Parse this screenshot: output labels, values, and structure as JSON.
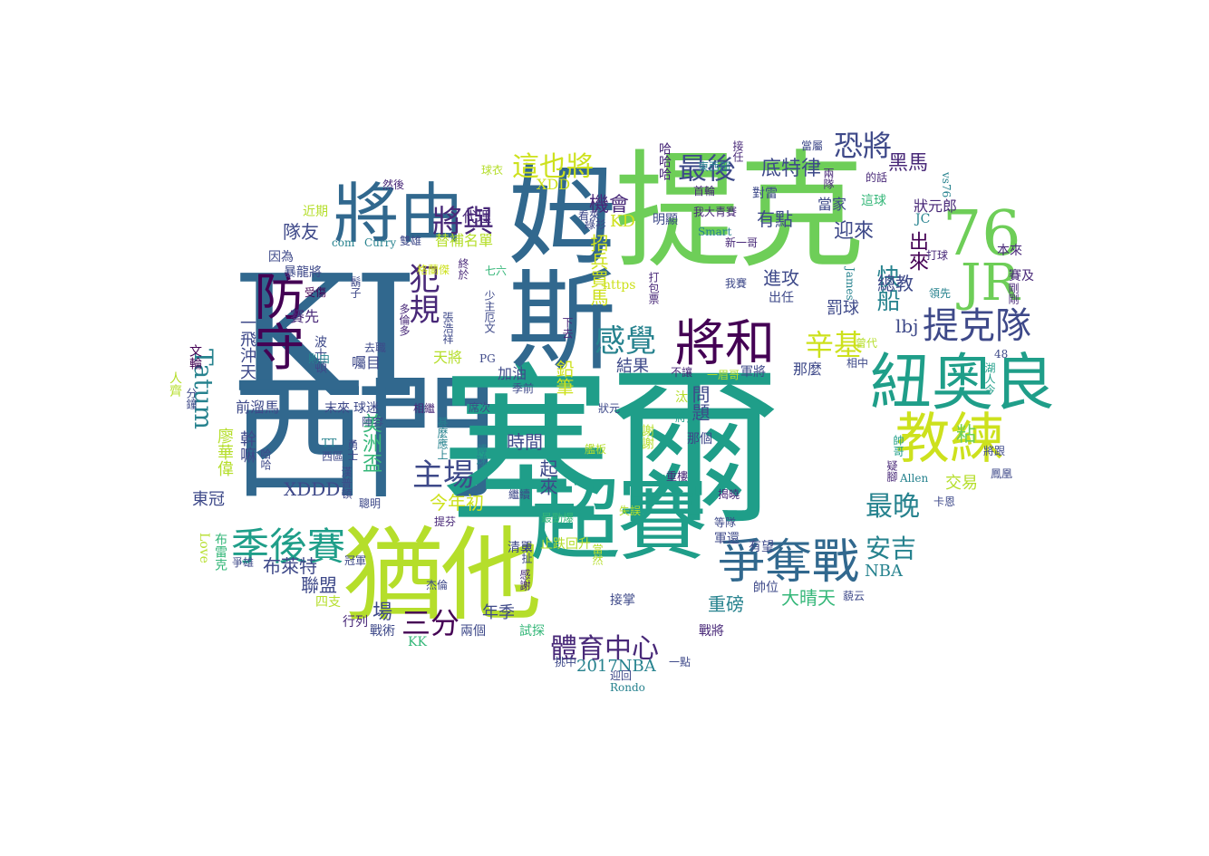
{
  "palette": {
    "dark_purple": "#440154",
    "purple": "#482878",
    "indigo": "#3e4989",
    "blue": "#31688e",
    "teal_blue": "#26828e",
    "teal": "#1f9e89",
    "green_teal": "#35b779",
    "green": "#6ece58",
    "lime": "#b5de2b",
    "yellow": "#cde11d"
  },
  "words": [
    {
      "text": "KI"
    },
    {
      "text": "西門"
    },
    {
      "text": "塞爾"
    },
    {
      "text": "提克"
    },
    {
      "text": "姆斯"
    },
    {
      "text": "猶他"
    },
    {
      "text": "超賽"
    },
    {
      "text": "紐奧良"
    },
    {
      "text": "將由"
    },
    {
      "text": "教練"
    },
    {
      "text": "76"
    },
    {
      "text": "JR"
    },
    {
      "text": "爭奪戰"
    },
    {
      "text": "將和"
    },
    {
      "text": "防守"
    },
    {
      "text": "季後賽"
    },
    {
      "text": "提克隊"
    },
    {
      "text": "感覺"
    },
    {
      "text": "將與"
    },
    {
      "text": "犯規"
    },
    {
      "text": "主場"
    },
    {
      "text": "最後"
    },
    {
      "text": "恐將"
    },
    {
      "text": "這也將"
    },
    {
      "text": "體育中心"
    },
    {
      "text": "三分"
    },
    {
      "text": "辛基"
    },
    {
      "text": "最晚"
    },
    {
      "text": "安吉"
    },
    {
      "text": "Tatum"
    },
    {
      "text": "快船"
    },
    {
      "text": "出來"
    },
    {
      "text": "底特律"
    },
    {
      "text": "黑馬"
    },
    {
      "text": "機會"
    },
    {
      "text": "迎來"
    },
    {
      "text": "有點"
    },
    {
      "text": "進攻"
    },
    {
      "text": "總教"
    },
    {
      "text": "罰球"
    },
    {
      "text": "lbj"
    },
    {
      "text": "隊友"
    },
    {
      "text": "代理"
    },
    {
      "text": "XDD"
    },
    {
      "text": "KD"
    },
    {
      "text": "替補名單"
    },
    {
      "text": "招兵買馬"
    },
    {
      "text": "鉛筆"
    },
    {
      "text": "結果"
    },
    {
      "text": "時間"
    },
    {
      "text": "問題"
    },
    {
      "text": "起來"
    },
    {
      "text": "今年初"
    },
    {
      "text": "XDDD"
    },
    {
      "text": "美洲盃"
    },
    {
      "text": "布萊特"
    },
    {
      "text": "聯盟"
    },
    {
      "text": "年季"
    },
    {
      "text": "場"
    },
    {
      "text": "重磅"
    },
    {
      "text": "大晴天"
    },
    {
      "text": "NBA"
    },
    {
      "text": "交易"
    },
    {
      "text": "粘"
    },
    {
      "text": "東冠"
    },
    {
      "text": "2017NBA"
    },
    {
      "text": "加油"
    },
    {
      "text": "天將"
    },
    {
      "text": "囑目"
    },
    {
      "text": "一飛沖天"
    },
    {
      "text": "幹嘛"
    },
    {
      "text": "廖華偉"
    },
    {
      "text": "前溜馬"
    },
    {
      "text": "清單"
    },
    {
      "text": "止跌回升"
    },
    {
      "text": "軍還"
    },
    {
      "text": "有望"
    },
    {
      "text": "帥位"
    },
    {
      "text": "戰將"
    },
    {
      "text": "挑中"
    },
    {
      "text": "迎回"
    },
    {
      "text": "一點"
    },
    {
      "text": "接掌"
    },
    {
      "text": "試探"
    },
    {
      "text": "兩個"
    },
    {
      "text": "戰術"
    },
    {
      "text": "KK"
    },
    {
      "text": "行列"
    },
    {
      "text": "四支"
    },
    {
      "text": "爭雄"
    },
    {
      "text": "Love"
    },
    {
      "text": "布雷克"
    },
    {
      "text": "近期"
    },
    {
      "text": "因為"
    },
    {
      "text": "暴龍將"
    },
    {
      "text": "受傷"
    },
    {
      "text": "賽先"
    },
    {
      "text": "波士頓"
    },
    {
      "text": "文輪"
    },
    {
      "text": "人齊"
    },
    {
      "text": "分鐘"
    },
    {
      "text": "然後"
    },
    {
      "text": "com"
    },
    {
      "text": "Curry"
    },
    {
      "text": "雙雄"
    },
    {
      "text": "球衣"
    },
    {
      "text": "綠衫"
    },
    {
      "text": "看來"
    },
    {
      "text": "鬍子"
    },
    {
      "text": "格蘭傑"
    },
    {
      "text": "多倫多"
    },
    {
      "text": "https"
    },
    {
      "text": "少主厄文"
    },
    {
      "text": "張浩祥"
    },
    {
      "text": "終於"
    },
    {
      "text": "PG"
    },
    {
      "text": "去職"
    },
    {
      "text": "七六"
    },
    {
      "text": "下去"
    },
    {
      "text": "打包票"
    },
    {
      "text": "明顯"
    },
    {
      "text": "哈哈哈"
    },
    {
      "text": "接任"
    },
    {
      "text": "東西部"
    },
    {
      "text": "首輪"
    },
    {
      "text": "對雷"
    },
    {
      "text": "我大青賽"
    },
    {
      "text": "Smart"
    },
    {
      "text": "新一哥"
    },
    {
      "text": "我賽"
    },
    {
      "text": "出任"
    },
    {
      "text": "當屬"
    },
    {
      "text": "兩隊"
    },
    {
      "text": "的話"
    },
    {
      "text": "這球"
    },
    {
      "text": "狀元郎"
    },
    {
      "text": "vs76"
    },
    {
      "text": "JC"
    },
    {
      "text": "打球"
    },
    {
      "text": "本來"
    },
    {
      "text": "賽及"
    },
    {
      "text": "領先"
    },
    {
      "text": "剛剛"
    },
    {
      "text": "當家"
    },
    {
      "text": "James"
    },
    {
      "text": "曾代"
    },
    {
      "text": "相中"
    },
    {
      "text": "48"
    },
    {
      "text": "湖人今"
    },
    {
      "text": "不讓"
    },
    {
      "text": "一眉哥"
    },
    {
      "text": "軍將"
    },
    {
      "text": "那麼"
    },
    {
      "text": "汰"
    },
    {
      "text": "狀元"
    },
    {
      "text": "將把"
    },
    {
      "text": "席次"
    },
    {
      "text": "季前"
    },
    {
      "text": "相繼"
    },
    {
      "text": "末來"
    },
    {
      "text": "球迷"
    },
    {
      "text": "陣容"
    },
    {
      "text": "聰明"
    },
    {
      "text": "揭曉"
    },
    {
      "text": "等隊"
    },
    {
      "text": "那個"
    },
    {
      "text": "謝謝"
    },
    {
      "text": "艦板"
    },
    {
      "text": "重樓"
    },
    {
      "text": "繼續"
    },
    {
      "text": "最勁爆"
    },
    {
      "text": "當然"
    },
    {
      "text": "失誤"
    },
    {
      "text": "提芬"
    },
    {
      "text": "甚麼應上"
    },
    {
      "text": "傅球"
    },
    {
      "text": "TT"
    },
    {
      "text": "西區"
    },
    {
      "text": "勇士"
    },
    {
      "text": "漢普頓"
    },
    {
      "text": "哈哈"
    },
    {
      "text": "Allen"
    },
    {
      "text": "將跟"
    },
    {
      "text": "鳳凰"
    },
    {
      "text": "疑腳"
    },
    {
      "text": "帥哥"
    },
    {
      "text": "卡恩"
    },
    {
      "text": "冠軍"
    },
    {
      "text": "杰倫"
    },
    {
      "text": "太扯"
    },
    {
      "text": "感謝"
    },
    {
      "text": "藐云"
    },
    {
      "text": "Rondo"
    },
    {
      "text": "則由"
    }
  ]
}
